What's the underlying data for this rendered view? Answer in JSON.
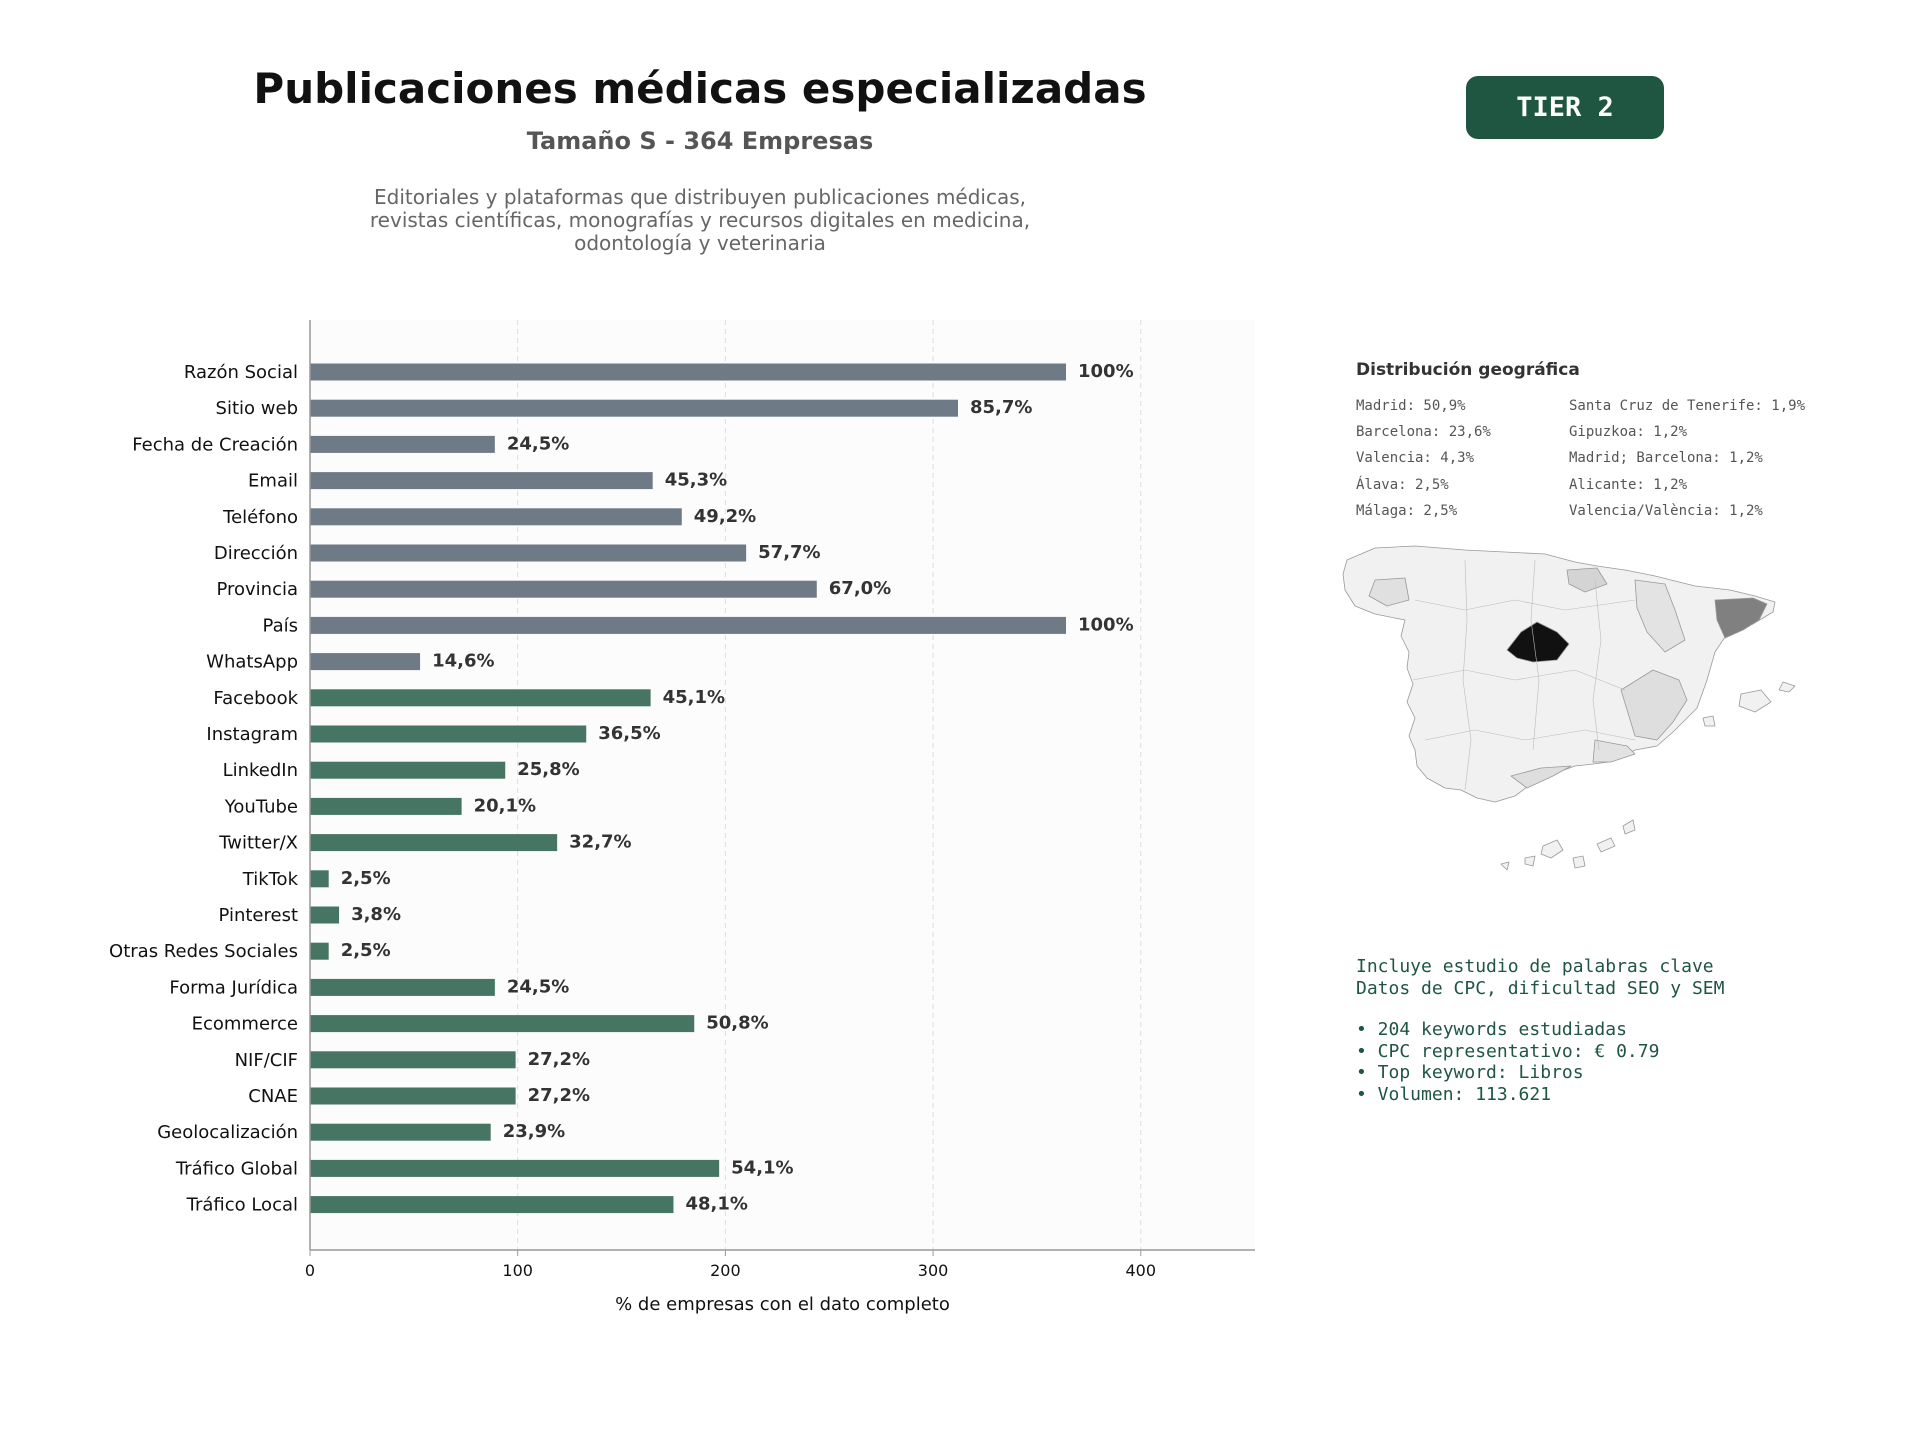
{
  "header": {
    "title": "Publicaciones médicas especializadas",
    "subtitle": "Tamaño S - 364 Empresas",
    "description_lines": [
      "Editoriales y plataformas que distribuyen publicaciones médicas,",
      "revistas científicas, monografías y recursos digitales en medicina,",
      "odontología y veterinaria"
    ],
    "tier_badge": "TIER 2"
  },
  "chart_data": {
    "type": "bar",
    "orientation": "horizontal",
    "categories": [
      "Razón Social",
      "Sitio web",
      "Fecha de Creación",
      "Email",
      "Teléfono",
      "Dirección",
      "Provincia",
      "País",
      "WhatsApp",
      "Facebook",
      "Instagram",
      "LinkedIn",
      "YouTube",
      "Twitter/X",
      "TikTok",
      "Pinterest",
      "Otras Redes Sociales",
      "Forma Jurídica",
      "Ecommerce",
      "NIF/CIF",
      "CNAE",
      "Geolocalización",
      "Tráfico Global",
      "Tráfico Local"
    ],
    "values": [
      364,
      312,
      89,
      165,
      179,
      210,
      244,
      364,
      53,
      164,
      133,
      94,
      73,
      119,
      9,
      14,
      9,
      89,
      185,
      99,
      99,
      87,
      197,
      175
    ],
    "data_labels": [
      "100%",
      "85,7%",
      "24,5%",
      "45,3%",
      "49,2%",
      "57,7%",
      "67,0%",
      "100%",
      "14,6%",
      "45,1%",
      "36,5%",
      "25,8%",
      "20,1%",
      "32,7%",
      "2,5%",
      "3,8%",
      "2,5%",
      "24,5%",
      "50,8%",
      "27,2%",
      "27,2%",
      "23,9%",
      "54,1%",
      "48,1%"
    ],
    "bar_colors": [
      "#6e7a86",
      "#6e7a86",
      "#6e7a86",
      "#6e7a86",
      "#6e7a86",
      "#6e7a86",
      "#6e7a86",
      "#6e7a86",
      "#6e7a86",
      "#467563",
      "#467563",
      "#467563",
      "#467563",
      "#467563",
      "#467563",
      "#467563",
      "#467563",
      "#467563",
      "#467563",
      "#467563",
      "#467563",
      "#467563",
      "#467563",
      "#467563"
    ],
    "xticks": [
      0,
      100,
      200,
      300,
      400
    ],
    "xlim": [
      0,
      455
    ],
    "xlabel": "% de empresas con el dato completo",
    "ylabel": "",
    "grid": "vertical dashed"
  },
  "geo": {
    "title": "Distribución geográfica",
    "col1": [
      "Madrid: 50,9%",
      "Barcelona: 23,6%",
      "Valencia: 4,3%",
      "Álava: 2,5%",
      "Málaga: 2,5%"
    ],
    "col2": [
      "Santa Cruz de Tenerife: 1,9%",
      "Gipuzkoa: 1,2%",
      "Madrid; Barcelona: 1,2%",
      "Alicante: 1,2%",
      "Valencia/València: 1,2%"
    ]
  },
  "keywords": {
    "intro_1": "Incluye estudio de palabras clave",
    "intro_2": "Datos de CPC, dificultad SEO y SEM",
    "bullet_1": "• 204 keywords estudiadas",
    "bullet_2": "• CPC representativo: € 0.79",
    "bullet_3": "• Top keyword: Libros",
    "bullet_4": "• Volumen: 113.621"
  },
  "colors": {
    "accent": "#1e5641",
    "bar_gray": "#6e7a86",
    "bar_green": "#467563"
  }
}
